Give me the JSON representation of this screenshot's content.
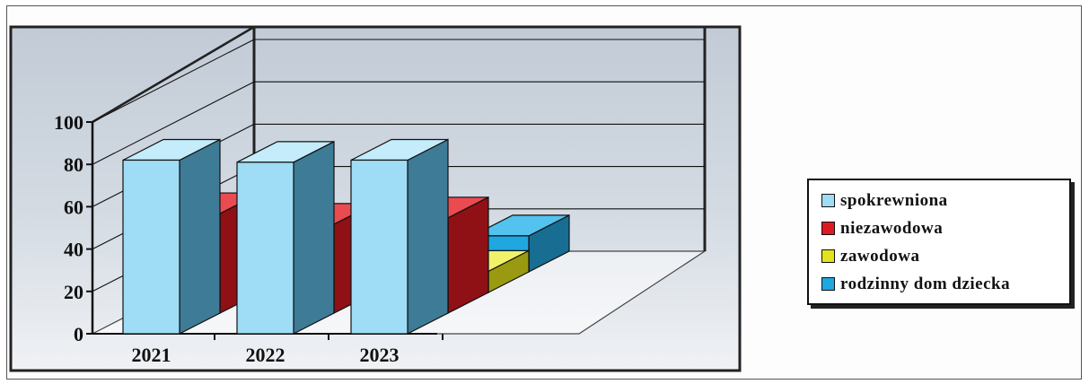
{
  "chart_data": {
    "type": "bar",
    "categories": [
      "2021",
      "2022",
      "2023"
    ],
    "series": [
      {
        "name": "spokrewniona",
        "values": [
          82,
          81,
          82
        ],
        "color": "#9fdcf6",
        "side_color": "#3e7b96",
        "top_color": "#c4ecfb"
      },
      {
        "name": "niezawodowa",
        "values": [
          47,
          42,
          45
        ],
        "color": "#dd1a22",
        "side_color": "#8f1116",
        "top_color": "#ea4b50"
      },
      {
        "name": "zawodowa",
        "values": [
          0,
          0,
          10
        ],
        "color": "#e2e21d",
        "side_color": "#9a9a10",
        "top_color": "#f1f16a"
      },
      {
        "name": "rodzinny dom dziecka",
        "values": [
          0,
          0,
          17
        ],
        "color": "#1fa7e0",
        "side_color": "#176d92",
        "top_color": "#53c2ee"
      }
    ],
    "y_ticks": [
      "0",
      "20",
      "40",
      "60",
      "80",
      "100"
    ],
    "ylim": [
      0,
      100
    ],
    "grid": true,
    "legend_position": "right",
    "view": "3d-perspective"
  }
}
